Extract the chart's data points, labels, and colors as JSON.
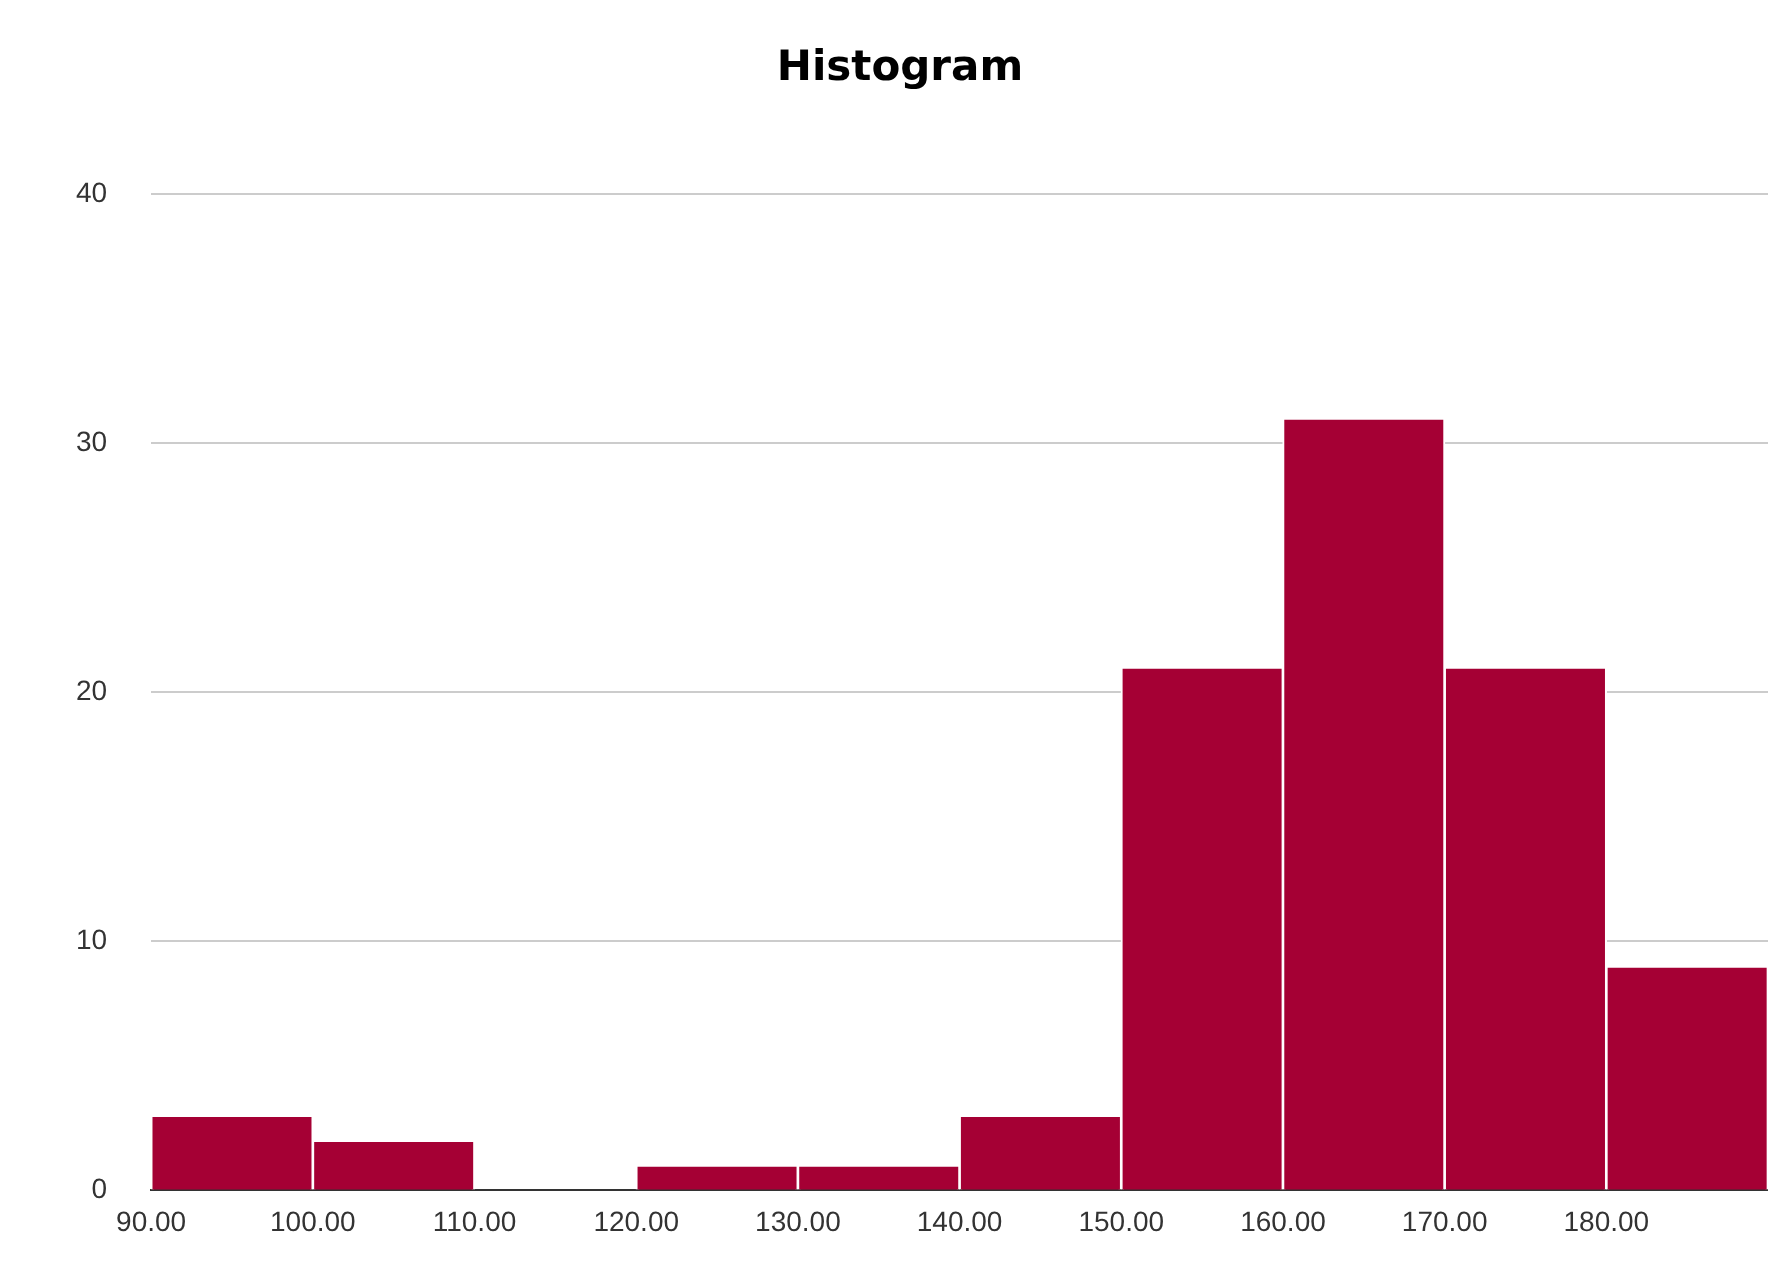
{
  "chart_data": {
    "type": "histogram",
    "title": "Histogram",
    "bins": [
      90,
      100,
      110,
      120,
      130,
      140,
      150,
      160,
      170,
      180,
      190
    ],
    "values": [
      3,
      2,
      0,
      1,
      1,
      3,
      21,
      31,
      21,
      9
    ],
    "color": "#a50034",
    "xlim": [
      90,
      190
    ],
    "xticks": [
      {
        "value": 90,
        "label": "90.00"
      },
      {
        "value": 100,
        "label": "100.00"
      },
      {
        "value": 110,
        "label": "110.00"
      },
      {
        "value": 120,
        "label": "120.00"
      },
      {
        "value": 130,
        "label": "130.00"
      },
      {
        "value": 140,
        "label": "140.00"
      },
      {
        "value": 150,
        "label": "150.00"
      },
      {
        "value": 160,
        "label": "160.00"
      },
      {
        "value": 170,
        "label": "170.00"
      },
      {
        "value": 180,
        "label": "180.00"
      }
    ],
    "ylim": [
      0,
      40
    ],
    "yticks": [
      0,
      10,
      20,
      30,
      40
    ],
    "grid": "y",
    "legend": false
  }
}
